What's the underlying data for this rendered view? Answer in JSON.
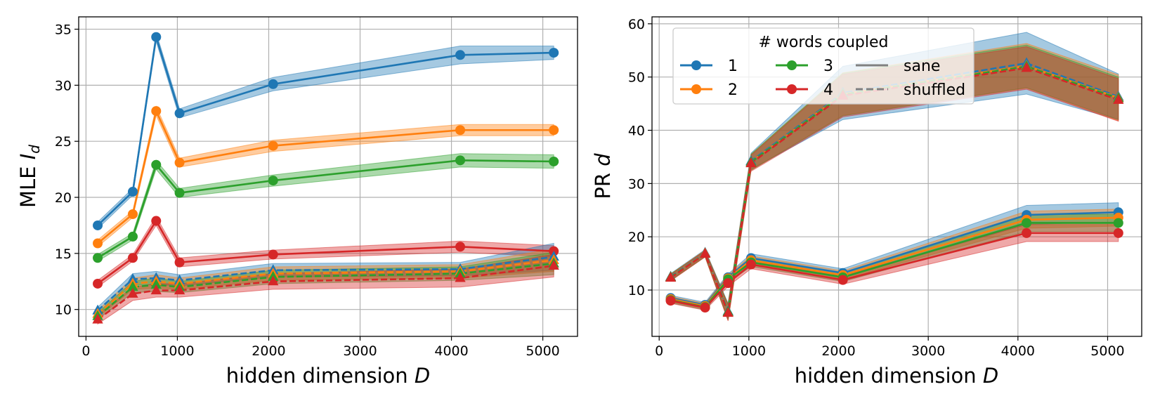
{
  "chart_data": [
    {
      "type": "line",
      "xlabel": "hidden dimension",
      "xlabel_var": "D",
      "ylabel": "MLE",
      "ylabel_var": "I",
      "ylabel_sub": "d",
      "xlim": [
        -80,
        5380
      ],
      "ylim": [
        7.6,
        36.1
      ],
      "xticks": [
        0,
        1000,
        2000,
        3000,
        4000,
        5000
      ],
      "yticks": [
        10,
        15,
        20,
        25,
        30,
        35
      ],
      "grid": true,
      "x": [
        128,
        512,
        768,
        1024,
        2048,
        4096,
        5120
      ],
      "series": [
        {
          "words": "1",
          "condition": "sane",
          "color": "#1f77b4",
          "values": [
            17.5,
            20.5,
            34.3,
            27.5,
            30.1,
            32.7,
            32.9
          ],
          "band": [
            0.3,
            0.3,
            0.4,
            0.4,
            0.6,
            0.8,
            0.6
          ]
        },
        {
          "words": "2",
          "condition": "sane",
          "color": "#ff7f0e",
          "values": [
            15.9,
            18.5,
            27.7,
            23.1,
            24.6,
            26.0,
            26.0
          ],
          "band": [
            0.3,
            0.3,
            0.4,
            0.4,
            0.5,
            0.5,
            0.5
          ]
        },
        {
          "words": "3",
          "condition": "sane",
          "color": "#2ca02c",
          "values": [
            14.6,
            16.5,
            22.9,
            20.4,
            21.5,
            23.3,
            23.2
          ],
          "band": [
            0.3,
            0.3,
            0.4,
            0.4,
            0.5,
            0.6,
            0.6
          ]
        },
        {
          "words": "4",
          "condition": "sane",
          "color": "#d62728",
          "values": [
            12.3,
            14.6,
            17.9,
            14.2,
            14.9,
            15.6,
            15.2
          ],
          "band": [
            0.3,
            0.3,
            0.4,
            0.4,
            0.4,
            0.5,
            0.5
          ]
        },
        {
          "words": "1",
          "condition": "shuffled",
          "color": "#1f77b4",
          "values": [
            9.9,
            12.7,
            12.8,
            12.6,
            13.5,
            13.6,
            14.7
          ],
          "band": [
            0.3,
            0.5,
            0.6,
            0.5,
            0.6,
            0.6,
            1.2
          ]
        },
        {
          "words": "2",
          "condition": "shuffled",
          "color": "#ff7f0e",
          "values": [
            9.6,
            12.3,
            12.5,
            12.3,
            13.2,
            13.4,
            14.4
          ],
          "band": [
            0.3,
            0.5,
            0.6,
            0.5,
            0.6,
            0.6,
            1.0
          ]
        },
        {
          "words": "3",
          "condition": "shuffled",
          "color": "#2ca02c",
          "values": [
            9.4,
            12.0,
            12.2,
            12.0,
            12.9,
            13.2,
            14.1
          ],
          "band": [
            0.3,
            0.5,
            0.6,
            0.5,
            0.6,
            0.6,
            1.0
          ]
        },
        {
          "words": "4",
          "condition": "shuffled",
          "color": "#d62728",
          "values": [
            9.1,
            11.4,
            11.7,
            11.7,
            12.5,
            12.8,
            13.9
          ],
          "band": [
            0.4,
            0.6,
            0.6,
            0.6,
            0.7,
            0.8,
            1.0
          ]
        }
      ]
    },
    {
      "type": "line",
      "xlabel": "hidden dimension",
      "xlabel_var": "D",
      "ylabel": "PR",
      "ylabel_var": "d",
      "ylabel_sub": "",
      "xlim": [
        -80,
        5380
      ],
      "ylim": [
        1.3,
        61.3
      ],
      "xticks": [
        0,
        1000,
        2000,
        3000,
        4000,
        5000
      ],
      "yticks": [
        10,
        20,
        30,
        40,
        50,
        60
      ],
      "grid": true,
      "x": [
        128,
        512,
        768,
        1024,
        2048,
        4096,
        5120
      ],
      "series": [
        {
          "words": "1",
          "condition": "sane",
          "color": "#1f77b4",
          "values": [
            8.5,
            7.2,
            12.4,
            16.0,
            13.2,
            24.1,
            24.6
          ],
          "band": [
            0.5,
            0.5,
            0.6,
            0.8,
            0.8,
            1.8,
            1.8
          ]
        },
        {
          "words": "2",
          "condition": "sane",
          "color": "#ff7f0e",
          "values": [
            8.3,
            7.0,
            12.2,
            15.6,
            12.8,
            23.2,
            23.6
          ],
          "band": [
            0.5,
            0.5,
            0.6,
            0.8,
            0.8,
            1.6,
            1.6
          ]
        },
        {
          "words": "3",
          "condition": "sane",
          "color": "#2ca02c",
          "values": [
            8.1,
            6.8,
            12.0,
            15.2,
            12.4,
            22.6,
            22.6
          ],
          "band": [
            0.5,
            0.5,
            0.6,
            0.8,
            0.8,
            1.6,
            1.6
          ]
        },
        {
          "words": "4",
          "condition": "sane",
          "color": "#d62728",
          "values": [
            8.0,
            6.7,
            11.3,
            14.8,
            11.9,
            20.7,
            20.7
          ],
          "band": [
            0.5,
            0.5,
            0.6,
            0.8,
            0.8,
            1.6,
            1.6
          ]
        },
        {
          "words": "1",
          "condition": "shuffled",
          "color": "#1f77b4",
          "values": [
            12.5,
            17.0,
            6.0,
            34.2,
            47.0,
            52.6,
            46.3
          ],
          "band": [
            0.6,
            0.6,
            1.5,
            1.5,
            5.0,
            5.8,
            4.3
          ]
        },
        {
          "words": "2",
          "condition": "shuffled",
          "color": "#ff7f0e",
          "values": [
            12.4,
            16.9,
            5.8,
            34.0,
            46.8,
            52.1,
            46.1
          ],
          "band": [
            0.6,
            0.6,
            1.5,
            1.5,
            4.0,
            4.2,
            4.3
          ]
        },
        {
          "words": "3",
          "condition": "shuffled",
          "color": "#2ca02c",
          "values": [
            12.4,
            16.8,
            5.9,
            34.0,
            46.7,
            52.0,
            46.0
          ],
          "band": [
            0.6,
            0.6,
            1.5,
            1.5,
            4.0,
            4.0,
            4.0
          ]
        },
        {
          "words": "4",
          "condition": "shuffled",
          "color": "#d62728",
          "values": [
            12.3,
            16.8,
            5.7,
            33.8,
            46.5,
            51.7,
            45.7
          ],
          "band": [
            0.6,
            0.6,
            1.5,
            1.5,
            4.0,
            4.0,
            4.0
          ]
        }
      ]
    }
  ],
  "legend": {
    "title": "# words coupled",
    "placement": "upper-left",
    "entries": [
      {
        "label": "1",
        "color": "#1f77b4",
        "style": "marker-line"
      },
      {
        "label": "2",
        "color": "#ff7f0e",
        "style": "marker-line"
      },
      {
        "label": "3",
        "color": "#2ca02c",
        "style": "marker-line"
      },
      {
        "label": "4",
        "color": "#d62728",
        "style": "marker-line"
      },
      {
        "label": "sane",
        "color": "#808080",
        "style": "solid"
      },
      {
        "label": "shuffled",
        "color": "#808080",
        "style": "dashed"
      }
    ]
  }
}
